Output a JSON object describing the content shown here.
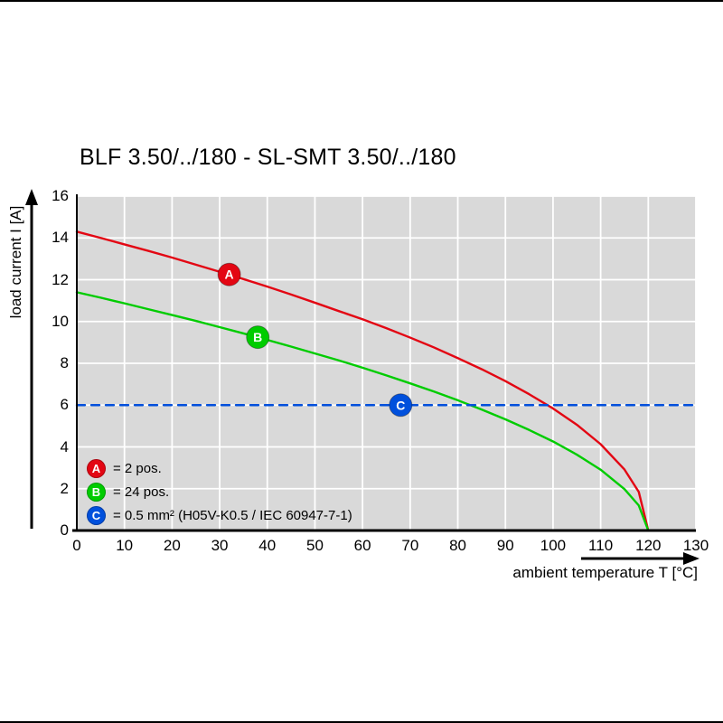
{
  "chart_data": {
    "type": "line",
    "title": "BLF 3.50/../180 - SL-SMT 3.50/../180",
    "xlabel": "ambient temperature T [°C]",
    "ylabel": "load current I [A]",
    "xlim": [
      0,
      130
    ],
    "ylim": [
      0,
      16
    ],
    "x_ticks": [
      0,
      10,
      20,
      30,
      40,
      50,
      60,
      70,
      80,
      90,
      100,
      110,
      120,
      130
    ],
    "y_ticks": [
      0,
      2,
      4,
      6,
      8,
      10,
      12,
      14,
      16
    ],
    "grid": true,
    "plot_bg": "#d9d9d9",
    "gridline_color": "#ffffff",
    "legend_position": "lower-left",
    "series": [
      {
        "name": "A",
        "label": "= 2 pos.",
        "color": "#e30613",
        "style": "solid",
        "marker_at": [
          32,
          12.25
        ],
        "points": [
          [
            0,
            14.3
          ],
          [
            5,
            14.0
          ],
          [
            10,
            13.69
          ],
          [
            15,
            13.38
          ],
          [
            20,
            13.06
          ],
          [
            25,
            12.72
          ],
          [
            30,
            12.38
          ],
          [
            35,
            12.03
          ],
          [
            40,
            11.67
          ],
          [
            45,
            11.29
          ],
          [
            50,
            10.9
          ],
          [
            55,
            10.5
          ],
          [
            60,
            10.11
          ],
          [
            65,
            9.68
          ],
          [
            70,
            9.23
          ],
          [
            75,
            8.76
          ],
          [
            80,
            8.25
          ],
          [
            85,
            7.72
          ],
          [
            90,
            7.15
          ],
          [
            95,
            6.52
          ],
          [
            100,
            5.84
          ],
          [
            105,
            5.06
          ],
          [
            110,
            4.13
          ],
          [
            115,
            2.92
          ],
          [
            118,
            1.85
          ],
          [
            120,
            0
          ]
        ]
      },
      {
        "name": "B",
        "label": "= 24 pos.",
        "color": "#00cc00",
        "style": "solid",
        "marker_at": [
          38,
          9.25
        ],
        "points": [
          [
            0,
            11.4
          ],
          [
            5,
            11.14
          ],
          [
            10,
            10.87
          ],
          [
            15,
            10.59
          ],
          [
            20,
            10.31
          ],
          [
            25,
            10.03
          ],
          [
            30,
            9.73
          ],
          [
            35,
            9.43
          ],
          [
            40,
            9.12
          ],
          [
            45,
            8.8
          ],
          [
            50,
            8.47
          ],
          [
            55,
            8.14
          ],
          [
            60,
            7.79
          ],
          [
            65,
            7.42
          ],
          [
            70,
            7.04
          ],
          [
            75,
            6.65
          ],
          [
            80,
            6.23
          ],
          [
            85,
            5.79
          ],
          [
            90,
            5.32
          ],
          [
            95,
            4.81
          ],
          [
            100,
            4.26
          ],
          [
            105,
            3.63
          ],
          [
            110,
            2.91
          ],
          [
            115,
            1.98
          ],
          [
            118,
            1.2
          ],
          [
            120,
            0
          ]
        ]
      },
      {
        "name": "C",
        "label": "= 0.5 mm² (H05V-K0.5 / IEC 60947-7-1)",
        "color": "#0050dc",
        "style": "dashed",
        "marker_at": [
          68,
          6
        ],
        "points": [
          [
            0,
            6
          ],
          [
            130,
            6
          ]
        ]
      }
    ]
  }
}
